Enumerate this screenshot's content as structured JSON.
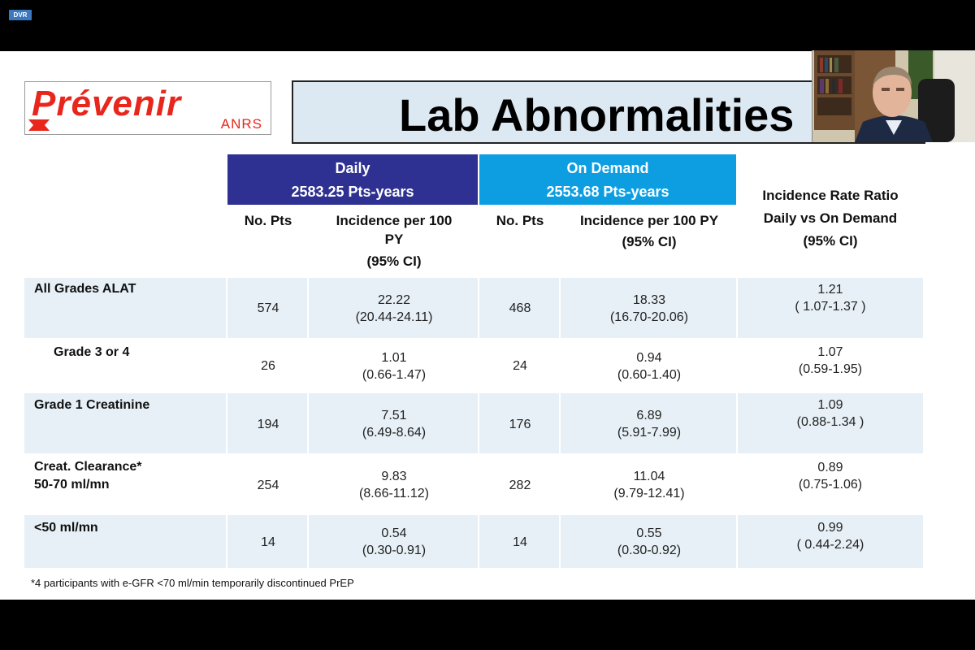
{
  "dvr_badge": "DVR",
  "logo": {
    "word": "Prévenir",
    "sub": "ANRS"
  },
  "title": "Lab Abnormalities",
  "group_headers": {
    "daily": {
      "name": "Daily",
      "sub": "2583.25 Pts-years"
    },
    "on_demand": {
      "name": "On Demand",
      "sub": "2553.68 Pts-years"
    }
  },
  "column_headers": {
    "no_pts": "No. Pts",
    "incidence_daily": [
      "Incidence per 100",
      "PY",
      "(95% CI)"
    ],
    "incidence_ondemand": [
      "Incidence per 100 PY",
      "(95% CI)"
    ],
    "irr": [
      "Incidence Rate Ratio",
      "Daily vs  On Demand",
      "(95% CI)"
    ]
  },
  "rows": [
    {
      "label": [
        "All Grades ALAT"
      ],
      "daily_n": "574",
      "daily_inc": [
        "22.22",
        "(20.44-24.11)"
      ],
      "od_n": "468",
      "od_inc": [
        "18.33",
        "(16.70-20.06)"
      ],
      "irr": [
        "1.21",
        "( 1.07-1.37 )"
      ]
    },
    {
      "label": [
        "Grade 3 or 4"
      ],
      "daily_n": "26",
      "daily_inc": [
        "1.01",
        "(0.66-1.47)"
      ],
      "od_n": "24",
      "od_inc": [
        "0.94",
        "(0.60-1.40)"
      ],
      "irr": [
        "1.07",
        "(0.59-1.95)"
      ]
    },
    {
      "label": [
        "Grade 1 Creatinine"
      ],
      "daily_n": "194",
      "daily_inc": [
        "7.51",
        "(6.49-8.64)"
      ],
      "od_n": "176",
      "od_inc": [
        "6.89",
        "(5.91-7.99)"
      ],
      "irr": [
        "1.09",
        "(0.88-1.34 )"
      ]
    },
    {
      "label": [
        "Creat. Clearance*",
        "50-70 ml/mn"
      ],
      "daily_n": "254",
      "daily_inc": [
        "9.83",
        "(8.66-11.12)"
      ],
      "od_n": "282",
      "od_inc": [
        "11.04",
        "(9.79-12.41)"
      ],
      "irr": [
        "0.89",
        "(0.75-1.06)"
      ]
    },
    {
      "label": [
        "<50 ml/mn"
      ],
      "daily_n": "14",
      "daily_inc": [
        "0.54",
        "(0.30-0.91)"
      ],
      "od_n": "14",
      "od_inc": [
        "0.55",
        "(0.30-0.92)"
      ],
      "irr": [
        "0.99",
        "( 0.44-2.24)"
      ]
    }
  ],
  "footnote": "*4 participants with e-GFR <70 ml/min temporarily discontinued PrEP",
  "colors": {
    "daily_header": "#2e3192",
    "ondemand_header": "#0d9ee2",
    "row_shade": "#e6f0f6",
    "logo_red": "#e8261c",
    "title_bg": "#dde9f2"
  }
}
